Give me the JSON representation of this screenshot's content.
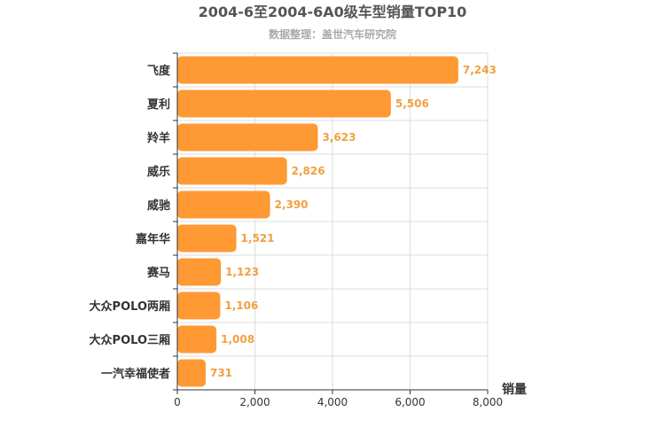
{
  "chart_data": {
    "type": "bar",
    "orientation": "horizontal",
    "title": "2004-6至2004-6A0级车型销量TOP10",
    "subtitle": "数据整理：盖世汽车研究院",
    "xlabel": "销量",
    "ylabel": "",
    "categories": [
      "飞度",
      "夏利",
      "羚羊",
      "威乐",
      "威驰",
      "嘉年华",
      "赛马",
      "大众POLO两厢",
      "大众POLO三厢",
      "一汽幸福使者"
    ],
    "values": [
      7243,
      5506,
      3623,
      2826,
      2390,
      1521,
      1123,
      1106,
      1008,
      731
    ],
    "value_labels": [
      "7,243",
      "5,506",
      "3,623",
      "2,826",
      "2,390",
      "1,521",
      "1,123",
      "1,106",
      "1,008",
      "731"
    ],
    "xlim": [
      0,
      8000
    ],
    "ticks": [
      0,
      2000,
      4000,
      6000,
      8000
    ],
    "tick_labels": [
      "0",
      "2,000",
      "4,000",
      "6,000",
      "8,000"
    ],
    "grid": true,
    "legend": "none",
    "bar_color": "#ff9933"
  }
}
